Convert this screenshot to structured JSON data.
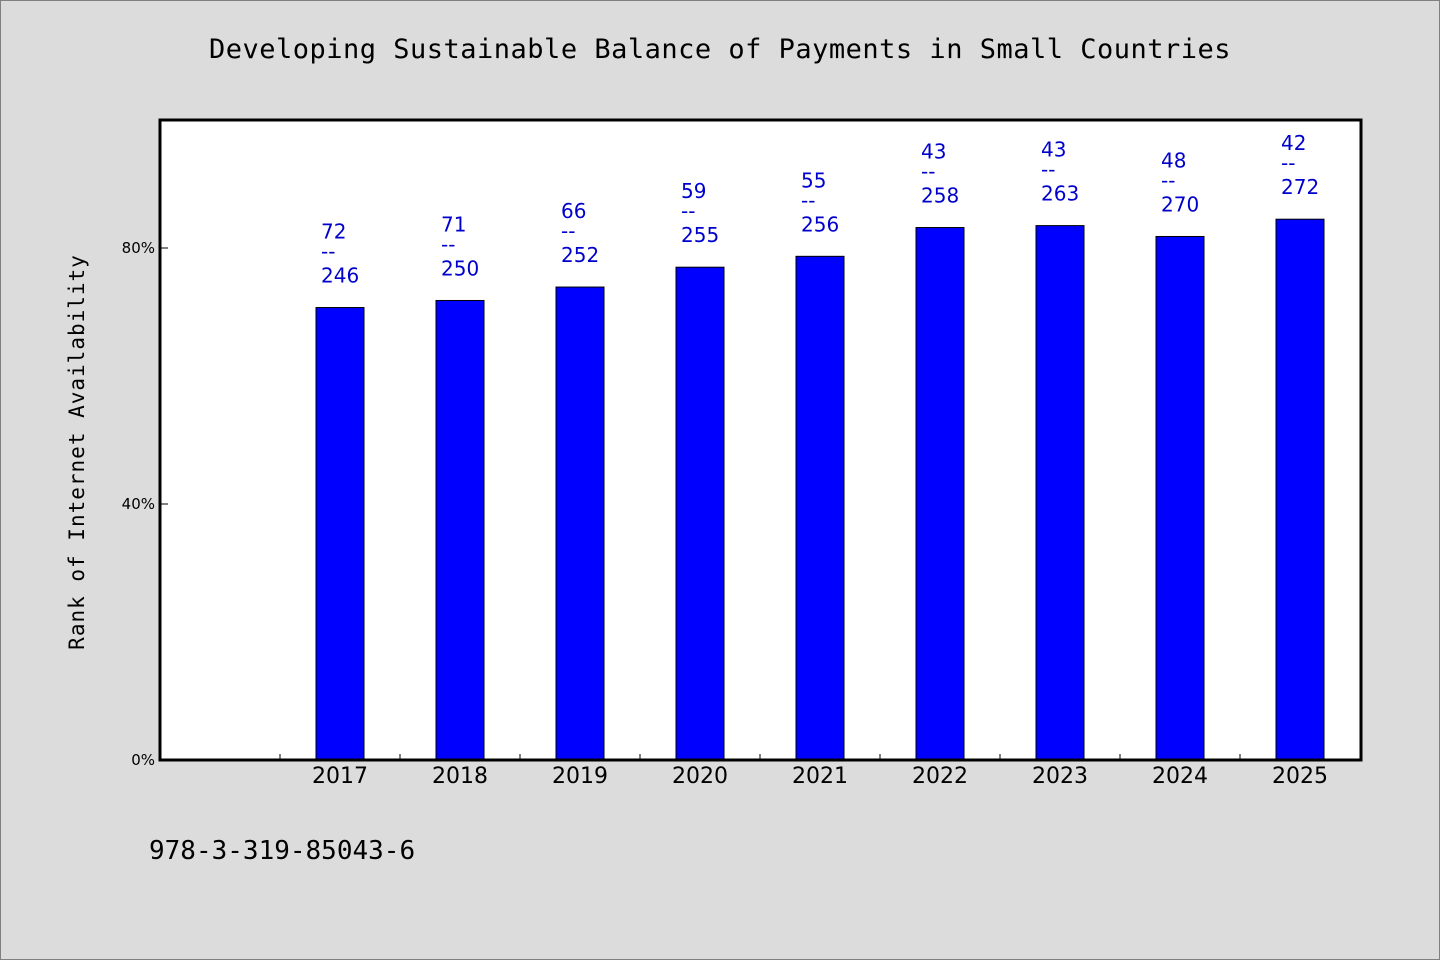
{
  "chart_data": {
    "type": "bar",
    "title": "Developing Sustainable Balance of Payments in Small Countries",
    "xlabel": "",
    "ylabel": "Rank of Internet Availability",
    "categories": [
      "2017",
      "2018",
      "2019",
      "2020",
      "2021",
      "2022",
      "2023",
      "2024",
      "2025"
    ],
    "series": [
      {
        "values": [
          70.7,
          71.8,
          73.9,
          77.0,
          78.7,
          83.2,
          83.5,
          81.8,
          84.5
        ]
      }
    ],
    "data_labels": [
      {
        "top": "72",
        "sep": "--",
        "bottom": "246"
      },
      {
        "top": "71",
        "sep": "--",
        "bottom": "250"
      },
      {
        "top": "66",
        "sep": "--",
        "bottom": "252"
      },
      {
        "top": "59",
        "sep": "--",
        "bottom": "255"
      },
      {
        "top": "55",
        "sep": "--",
        "bottom": "256"
      },
      {
        "top": "43",
        "sep": "--",
        "bottom": "258"
      },
      {
        "top": "43",
        "sep": "--",
        "bottom": "263"
      },
      {
        "top": "48",
        "sep": "--",
        "bottom": "270"
      },
      {
        "top": "42",
        "sep": "--",
        "bottom": "272"
      }
    ],
    "ylim": [
      0,
      100
    ],
    "yticks": [
      0,
      40,
      80
    ],
    "ytick_labels": [
      "0%",
      "40%",
      "80%"
    ],
    "grid": false,
    "legend": "none",
    "bar_color": "#0000ff",
    "label_color": "#0000cc"
  },
  "footer_text": "978-3-319-85043-6"
}
